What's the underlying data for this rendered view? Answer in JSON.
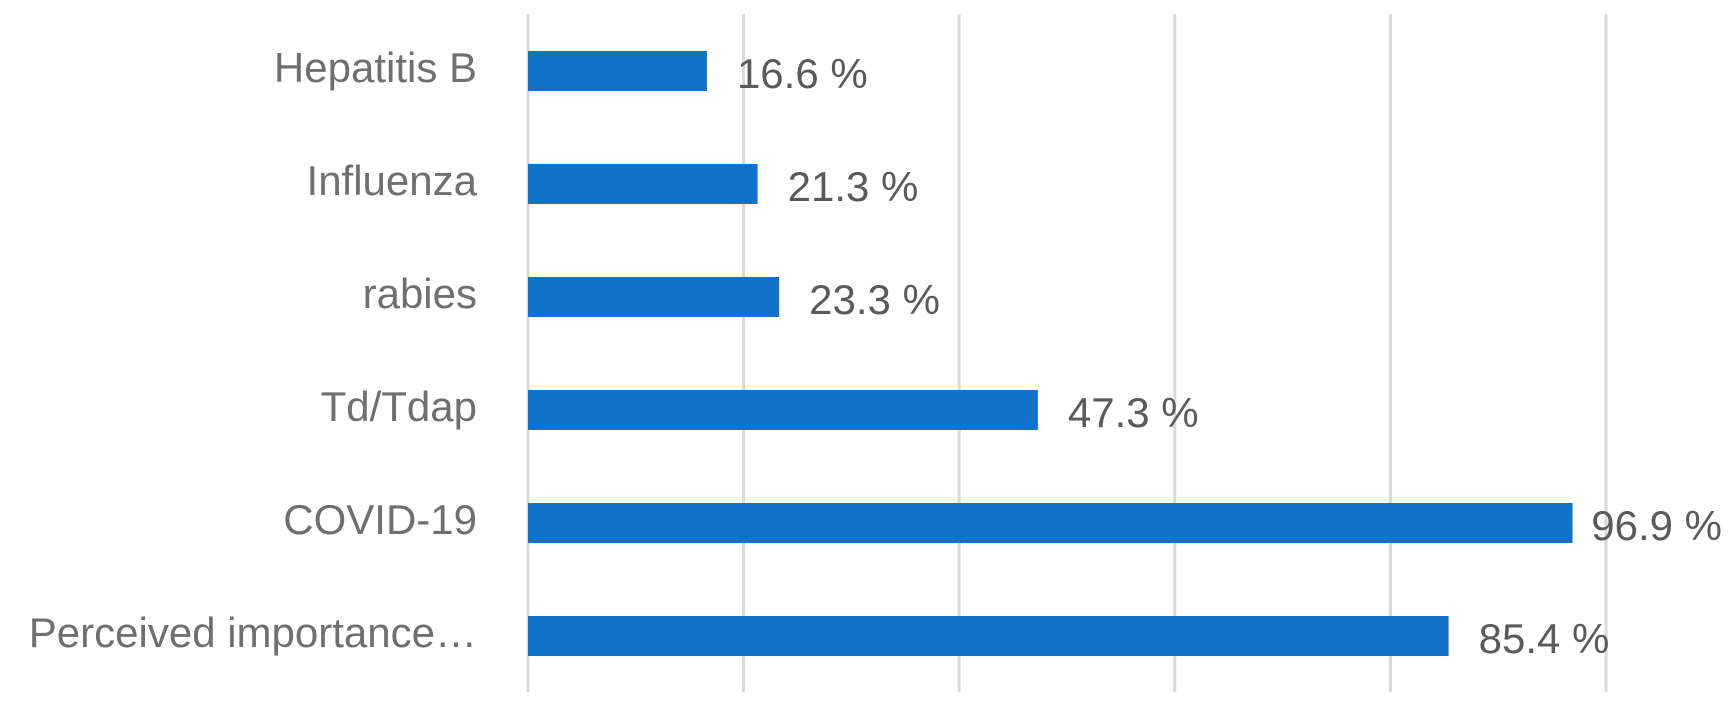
{
  "chart_data": {
    "type": "bar",
    "orientation": "horizontal",
    "categories": [
      "Hepatitis B",
      "Influenza",
      "rabies",
      "Td/Tdap",
      "COVID-19",
      "Perceived importance…"
    ],
    "values": [
      16.6,
      21.3,
      23.3,
      47.3,
      96.9,
      85.4
    ],
    "value_labels": [
      "16.6 %",
      "21.3 %",
      "23.3 %",
      "47.3 %",
      "96.9 %",
      "85.4 %"
    ],
    "xlim": [
      0,
      100
    ],
    "x_grid_step": 20,
    "grid": true,
    "bar_color": "#1072C8",
    "title": "",
    "xlabel": "",
    "ylabel": ""
  }
}
